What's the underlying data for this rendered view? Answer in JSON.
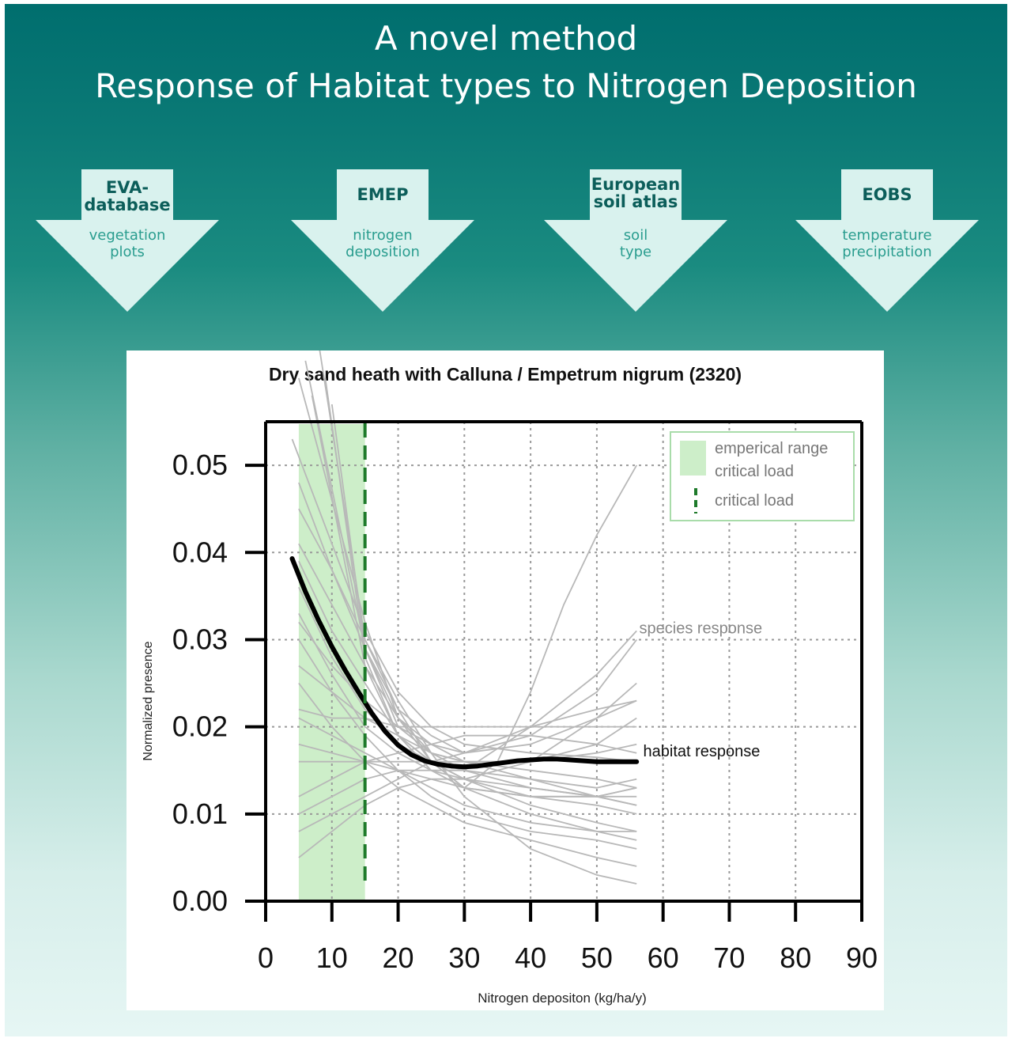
{
  "header": {
    "title_line1": "A novel method",
    "title_line2": "Response of Habitat types to Nitrogen Deposition"
  },
  "sources": [
    {
      "name": "EVA-\ndatabase",
      "desc": "vegetation\nplots"
    },
    {
      "name": "EMEP",
      "desc": "nitrogen\ndeposition"
    },
    {
      "name": "European\nsoil atlas",
      "desc": "soil\ntype"
    },
    {
      "name": "EOBS",
      "desc": "temperature\nprecipitation"
    }
  ],
  "colors": {
    "arrow_fill": "#d9f2ee",
    "species_line": "#b8b8b8",
    "habitat_line": "#000000",
    "range_fill": "#cdeec9",
    "critical_load": "#1e7a2a"
  },
  "chart_data": {
    "type": "line",
    "title": "Dry sand heath with Calluna / Empetrum nigrum (2320)",
    "xlabel": "Nitrogen depositon (kg/ha/y)",
    "ylabel": "Normalized presence",
    "xlim": [
      0,
      90
    ],
    "ylim": [
      0,
      0.055
    ],
    "xticks": [
      0,
      10,
      20,
      30,
      40,
      50,
      60,
      70,
      80,
      90
    ],
    "yticks": [
      0.0,
      0.01,
      0.02,
      0.03,
      0.04,
      0.05
    ],
    "ytick_labels": [
      "0.00",
      "0.01",
      "0.02",
      "0.03",
      "0.04",
      "0.05"
    ],
    "grid": true,
    "empirical_range_critical_load": [
      5,
      15
    ],
    "critical_load": 15,
    "legend": {
      "position": "top-right",
      "range_label_line1": "emperical range",
      "range_label_line2": "critical load",
      "critical_label": "critical load"
    },
    "annotations": {
      "species": "species response",
      "habitat": "habitat response"
    },
    "habitat_response": {
      "x": [
        4,
        6,
        8,
        10,
        12,
        14,
        16,
        18,
        20,
        22,
        24,
        26,
        28,
        30,
        32,
        34,
        36,
        38,
        40,
        42,
        44,
        46,
        48,
        50,
        52,
        54,
        56
      ],
      "y": [
        0.0393,
        0.0355,
        0.0322,
        0.0292,
        0.0265,
        0.024,
        0.0216,
        0.0195,
        0.0179,
        0.0168,
        0.0161,
        0.0157,
        0.0155,
        0.0154,
        0.0155,
        0.0157,
        0.0159,
        0.0161,
        0.0162,
        0.0163,
        0.0163,
        0.0162,
        0.0161,
        0.016,
        0.016,
        0.016,
        0.016
      ]
    },
    "species_responses": [
      {
        "x": [
          4,
          15,
          20,
          25,
          30,
          40,
          50,
          56
        ],
        "y": [
          0.053,
          0.031,
          0.024,
          0.02,
          0.018,
          0.017,
          0.0165,
          0.016
        ]
      },
      {
        "x": [
          5,
          15,
          20,
          25,
          30,
          40,
          50,
          56
        ],
        "y": [
          0.06,
          0.032,
          0.021,
          0.017,
          0.015,
          0.013,
          0.012,
          0.011
        ]
      },
      {
        "x": [
          6,
          15,
          20,
          25,
          30,
          40,
          50,
          56
        ],
        "y": [
          0.062,
          0.029,
          0.02,
          0.017,
          0.016,
          0.016,
          0.017,
          0.018
        ]
      },
      {
        "x": [
          7,
          15,
          20,
          25,
          30,
          40,
          50,
          56
        ],
        "y": [
          0.058,
          0.027,
          0.019,
          0.016,
          0.014,
          0.011,
          0.009,
          0.008
        ]
      },
      {
        "x": [
          8,
          15,
          20,
          25,
          30,
          40,
          50,
          56
        ],
        "y": [
          0.064,
          0.03,
          0.022,
          0.019,
          0.017,
          0.018,
          0.021,
          0.023
        ]
      },
      {
        "x": [
          9,
          15,
          20,
          25,
          30,
          40,
          50,
          56
        ],
        "y": [
          0.06,
          0.028,
          0.019,
          0.015,
          0.013,
          0.012,
          0.012,
          0.013
        ]
      },
      {
        "x": [
          10,
          15,
          20,
          25,
          30,
          40,
          50,
          56
        ],
        "y": [
          0.057,
          0.029,
          0.021,
          0.018,
          0.017,
          0.019,
          0.024,
          0.03
        ]
      },
      {
        "x": [
          5,
          10,
          15,
          20,
          25,
          30,
          40,
          50,
          56
        ],
        "y": [
          0.045,
          0.038,
          0.03,
          0.023,
          0.017,
          0.012,
          0.006,
          0.003,
          0.002
        ]
      },
      {
        "x": [
          5,
          10,
          15,
          20,
          25,
          30,
          40,
          50,
          56
        ],
        "y": [
          0.041,
          0.034,
          0.027,
          0.021,
          0.016,
          0.013,
          0.01,
          0.008,
          0.007
        ]
      },
      {
        "x": [
          5,
          10,
          15,
          20,
          25,
          30,
          40,
          50,
          56
        ],
        "y": [
          0.036,
          0.028,
          0.022,
          0.018,
          0.016,
          0.014,
          0.012,
          0.011,
          0.01
        ]
      },
      {
        "x": [
          5,
          10,
          15,
          20,
          25,
          30,
          40,
          50,
          56
        ],
        "y": [
          0.03,
          0.024,
          0.019,
          0.015,
          0.012,
          0.01,
          0.008,
          0.007,
          0.006
        ]
      },
      {
        "x": [
          5,
          10,
          15,
          20,
          25,
          30,
          40,
          50,
          56
        ],
        "y": [
          0.025,
          0.02,
          0.016,
          0.013,
          0.011,
          0.009,
          0.007,
          0.005,
          0.004
        ]
      },
      {
        "x": [
          5,
          10,
          15,
          20,
          25,
          30,
          40,
          50,
          56
        ],
        "y": [
          0.022,
          0.021,
          0.021,
          0.02,
          0.02,
          0.02,
          0.02,
          0.02,
          0.02
        ]
      },
      {
        "x": [
          5,
          10,
          15,
          20,
          25,
          30,
          40,
          50,
          56
        ],
        "y": [
          0.016,
          0.016,
          0.016,
          0.016,
          0.016,
          0.016,
          0.015,
          0.014,
          0.013
        ]
      },
      {
        "x": [
          5,
          10,
          15,
          20,
          25,
          30,
          40,
          50,
          56
        ],
        "y": [
          0.008,
          0.01,
          0.012,
          0.014,
          0.016,
          0.017,
          0.02,
          0.022,
          0.023
        ]
      },
      {
        "x": [
          5,
          10,
          15,
          20,
          25,
          30,
          40,
          50,
          56
        ],
        "y": [
          0.012,
          0.014,
          0.016,
          0.017,
          0.018,
          0.019,
          0.019,
          0.018,
          0.017
        ]
      },
      {
        "x": [
          5,
          10,
          15,
          20,
          25,
          30,
          40,
          50,
          56
        ],
        "y": [
          0.018,
          0.017,
          0.016,
          0.015,
          0.014,
          0.013,
          0.012,
          0.012,
          0.013
        ]
      },
      {
        "x": [
          5,
          10,
          15,
          20,
          25,
          30,
          40,
          50,
          56
        ],
        "y": [
          0.027,
          0.024,
          0.021,
          0.019,
          0.017,
          0.016,
          0.016,
          0.018,
          0.021
        ]
      },
      {
        "x": [
          5,
          10,
          15,
          20,
          25,
          30,
          40,
          50,
          56
        ],
        "y": [
          0.033,
          0.026,
          0.02,
          0.017,
          0.015,
          0.014,
          0.016,
          0.021,
          0.025
        ]
      },
      {
        "x": [
          5,
          10,
          15,
          20,
          25,
          30,
          40,
          50,
          56
        ],
        "y": [
          0.021,
          0.019,
          0.017,
          0.015,
          0.013,
          0.011,
          0.009,
          0.008,
          0.008
        ]
      },
      {
        "x": [
          5,
          10,
          15,
          20,
          25,
          30,
          35,
          40,
          45,
          50,
          56
        ],
        "y": [
          0.048,
          0.038,
          0.029,
          0.022,
          0.016,
          0.013,
          0.016,
          0.024,
          0.034,
          0.042,
          0.05
        ]
      },
      {
        "x": [
          5,
          10,
          15,
          20,
          25,
          30,
          40,
          50,
          56
        ],
        "y": [
          0.039,
          0.031,
          0.025,
          0.019,
          0.016,
          0.015,
          0.02,
          0.026,
          0.031
        ]
      },
      {
        "x": [
          5,
          10,
          15,
          20,
          25,
          30,
          40,
          50,
          56
        ],
        "y": [
          0.01,
          0.012,
          0.014,
          0.015,
          0.015,
          0.015,
          0.014,
          0.012,
          0.011
        ]
      },
      {
        "x": [
          5,
          10,
          15,
          20,
          25,
          30,
          40,
          50,
          56
        ],
        "y": [
          0.005,
          0.008,
          0.011,
          0.013,
          0.014,
          0.014,
          0.013,
          0.012,
          0.012
        ]
      },
      {
        "x": [
          5,
          10,
          15,
          20,
          25,
          30,
          40,
          50,
          56
        ],
        "y": [
          0.032,
          0.027,
          0.023,
          0.02,
          0.018,
          0.016,
          0.014,
          0.013,
          0.014
        ]
      }
    ]
  }
}
